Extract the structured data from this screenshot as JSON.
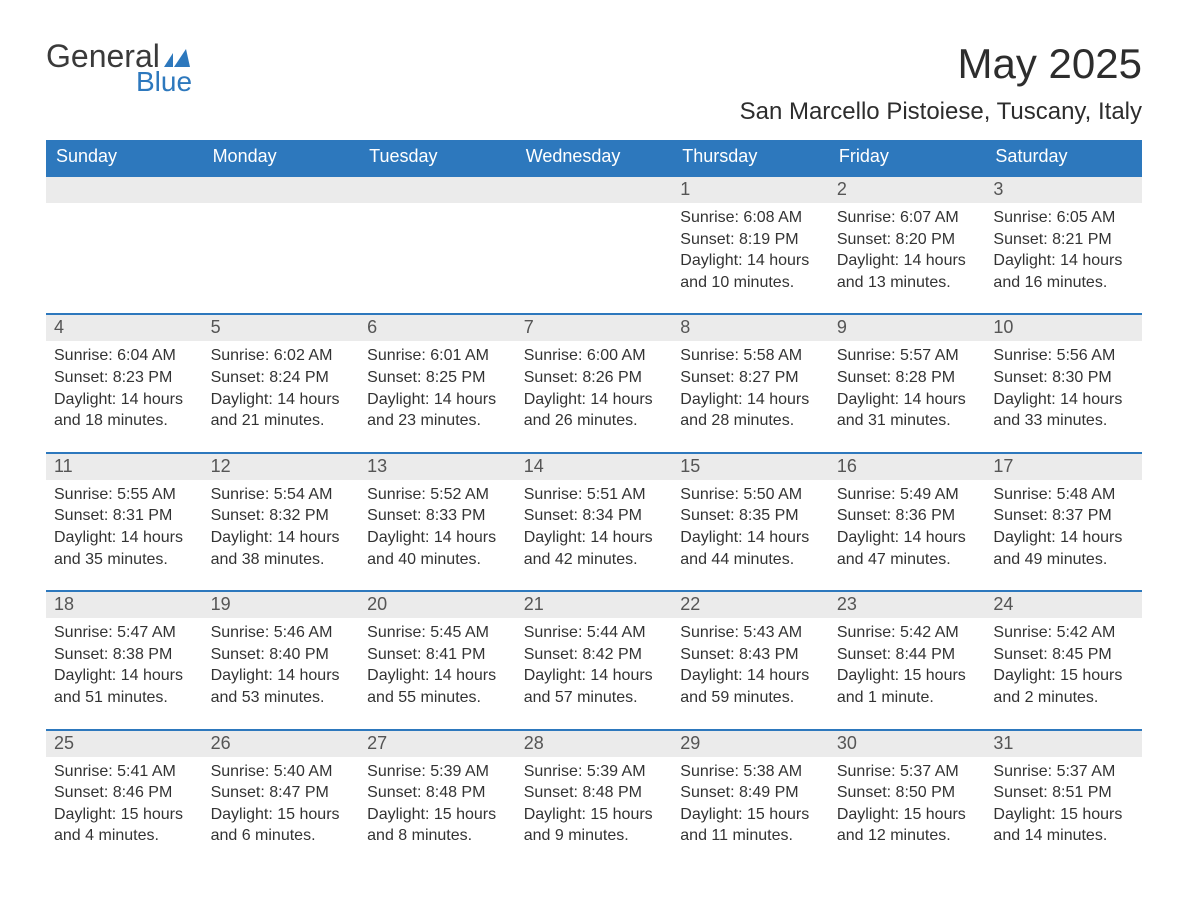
{
  "logo": {
    "word1": "General",
    "word2": "Blue",
    "text_color_1": "#3a3a3a",
    "text_color_2": "#2d78bd",
    "mark_color": "#2d78bd"
  },
  "title": "May 2025",
  "subtitle": "San Marcello Pistoiese, Tuscany, Italy",
  "colors": {
    "header_bg": "#2d78bd",
    "header_text": "#ffffff",
    "daynum_bg": "#ebebeb",
    "daynum_text": "#555555",
    "body_text": "#333333",
    "rule": "#2d78bd",
    "page_bg": "#ffffff"
  },
  "day_names": [
    "Sunday",
    "Monday",
    "Tuesday",
    "Wednesday",
    "Thursday",
    "Friday",
    "Saturday"
  ],
  "weeks": [
    {
      "days": [
        {
          "num": "",
          "lines": []
        },
        {
          "num": "",
          "lines": []
        },
        {
          "num": "",
          "lines": []
        },
        {
          "num": "",
          "lines": []
        },
        {
          "num": "1",
          "lines": [
            "Sunrise: 6:08 AM",
            "Sunset: 8:19 PM",
            "Daylight: 14 hours",
            "and 10 minutes."
          ]
        },
        {
          "num": "2",
          "lines": [
            "Sunrise: 6:07 AM",
            "Sunset: 8:20 PM",
            "Daylight: 14 hours",
            "and 13 minutes."
          ]
        },
        {
          "num": "3",
          "lines": [
            "Sunrise: 6:05 AM",
            "Sunset: 8:21 PM",
            "Daylight: 14 hours",
            "and 16 minutes."
          ]
        }
      ]
    },
    {
      "days": [
        {
          "num": "4",
          "lines": [
            "Sunrise: 6:04 AM",
            "Sunset: 8:23 PM",
            "Daylight: 14 hours",
            "and 18 minutes."
          ]
        },
        {
          "num": "5",
          "lines": [
            "Sunrise: 6:02 AM",
            "Sunset: 8:24 PM",
            "Daylight: 14 hours",
            "and 21 minutes."
          ]
        },
        {
          "num": "6",
          "lines": [
            "Sunrise: 6:01 AM",
            "Sunset: 8:25 PM",
            "Daylight: 14 hours",
            "and 23 minutes."
          ]
        },
        {
          "num": "7",
          "lines": [
            "Sunrise: 6:00 AM",
            "Sunset: 8:26 PM",
            "Daylight: 14 hours",
            "and 26 minutes."
          ]
        },
        {
          "num": "8",
          "lines": [
            "Sunrise: 5:58 AM",
            "Sunset: 8:27 PM",
            "Daylight: 14 hours",
            "and 28 minutes."
          ]
        },
        {
          "num": "9",
          "lines": [
            "Sunrise: 5:57 AM",
            "Sunset: 8:28 PM",
            "Daylight: 14 hours",
            "and 31 minutes."
          ]
        },
        {
          "num": "10",
          "lines": [
            "Sunrise: 5:56 AM",
            "Sunset: 8:30 PM",
            "Daylight: 14 hours",
            "and 33 minutes."
          ]
        }
      ]
    },
    {
      "days": [
        {
          "num": "11",
          "lines": [
            "Sunrise: 5:55 AM",
            "Sunset: 8:31 PM",
            "Daylight: 14 hours",
            "and 35 minutes."
          ]
        },
        {
          "num": "12",
          "lines": [
            "Sunrise: 5:54 AM",
            "Sunset: 8:32 PM",
            "Daylight: 14 hours",
            "and 38 minutes."
          ]
        },
        {
          "num": "13",
          "lines": [
            "Sunrise: 5:52 AM",
            "Sunset: 8:33 PM",
            "Daylight: 14 hours",
            "and 40 minutes."
          ]
        },
        {
          "num": "14",
          "lines": [
            "Sunrise: 5:51 AM",
            "Sunset: 8:34 PM",
            "Daylight: 14 hours",
            "and 42 minutes."
          ]
        },
        {
          "num": "15",
          "lines": [
            "Sunrise: 5:50 AM",
            "Sunset: 8:35 PM",
            "Daylight: 14 hours",
            "and 44 minutes."
          ]
        },
        {
          "num": "16",
          "lines": [
            "Sunrise: 5:49 AM",
            "Sunset: 8:36 PM",
            "Daylight: 14 hours",
            "and 47 minutes."
          ]
        },
        {
          "num": "17",
          "lines": [
            "Sunrise: 5:48 AM",
            "Sunset: 8:37 PM",
            "Daylight: 14 hours",
            "and 49 minutes."
          ]
        }
      ]
    },
    {
      "days": [
        {
          "num": "18",
          "lines": [
            "Sunrise: 5:47 AM",
            "Sunset: 8:38 PM",
            "Daylight: 14 hours",
            "and 51 minutes."
          ]
        },
        {
          "num": "19",
          "lines": [
            "Sunrise: 5:46 AM",
            "Sunset: 8:40 PM",
            "Daylight: 14 hours",
            "and 53 minutes."
          ]
        },
        {
          "num": "20",
          "lines": [
            "Sunrise: 5:45 AM",
            "Sunset: 8:41 PM",
            "Daylight: 14 hours",
            "and 55 minutes."
          ]
        },
        {
          "num": "21",
          "lines": [
            "Sunrise: 5:44 AM",
            "Sunset: 8:42 PM",
            "Daylight: 14 hours",
            "and 57 minutes."
          ]
        },
        {
          "num": "22",
          "lines": [
            "Sunrise: 5:43 AM",
            "Sunset: 8:43 PM",
            "Daylight: 14 hours",
            "and 59 minutes."
          ]
        },
        {
          "num": "23",
          "lines": [
            "Sunrise: 5:42 AM",
            "Sunset: 8:44 PM",
            "Daylight: 15 hours",
            "and 1 minute."
          ]
        },
        {
          "num": "24",
          "lines": [
            "Sunrise: 5:42 AM",
            "Sunset: 8:45 PM",
            "Daylight: 15 hours",
            "and 2 minutes."
          ]
        }
      ]
    },
    {
      "days": [
        {
          "num": "25",
          "lines": [
            "Sunrise: 5:41 AM",
            "Sunset: 8:46 PM",
            "Daylight: 15 hours",
            "and 4 minutes."
          ]
        },
        {
          "num": "26",
          "lines": [
            "Sunrise: 5:40 AM",
            "Sunset: 8:47 PM",
            "Daylight: 15 hours",
            "and 6 minutes."
          ]
        },
        {
          "num": "27",
          "lines": [
            "Sunrise: 5:39 AM",
            "Sunset: 8:48 PM",
            "Daylight: 15 hours",
            "and 8 minutes."
          ]
        },
        {
          "num": "28",
          "lines": [
            "Sunrise: 5:39 AM",
            "Sunset: 8:48 PM",
            "Daylight: 15 hours",
            "and 9 minutes."
          ]
        },
        {
          "num": "29",
          "lines": [
            "Sunrise: 5:38 AM",
            "Sunset: 8:49 PM",
            "Daylight: 15 hours",
            "and 11 minutes."
          ]
        },
        {
          "num": "30",
          "lines": [
            "Sunrise: 5:37 AM",
            "Sunset: 8:50 PM",
            "Daylight: 15 hours",
            "and 12 minutes."
          ]
        },
        {
          "num": "31",
          "lines": [
            "Sunrise: 5:37 AM",
            "Sunset: 8:51 PM",
            "Daylight: 15 hours",
            "and 14 minutes."
          ]
        }
      ]
    }
  ]
}
